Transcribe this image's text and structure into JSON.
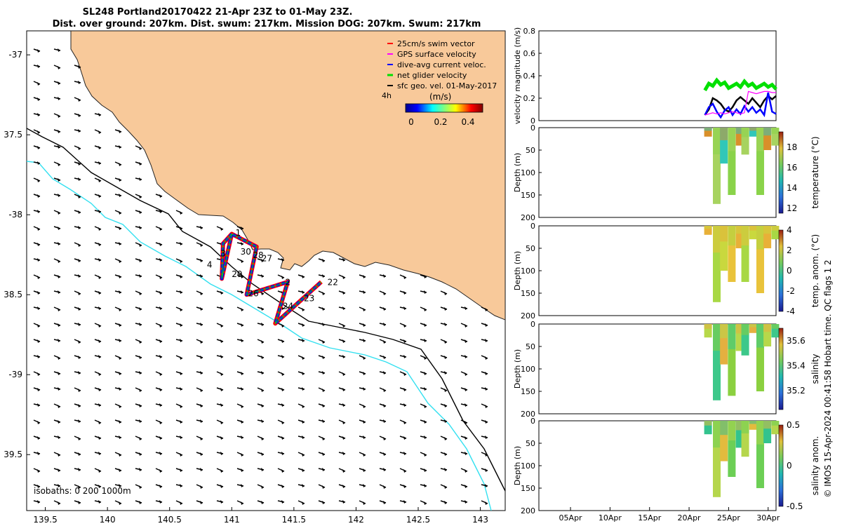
{
  "header": {
    "title_line1": "SL248 Portland20170422 21-Apr 23Z to 01-May 23Z.",
    "title_line2": "Dist. over ground: 207km. Dist. swum: 217km. Mission DOG: 207km. Swum: 217km"
  },
  "credit": "© IMOS 15-Apr-2024 00:41:58 Hobart time. QC flags 1  2",
  "colors": {
    "land": "#f8c99a",
    "coast": "#222222",
    "isobath_shallow": "#000000",
    "isobath_deep": "#33e0f0",
    "swim": "#ff0000",
    "gps": "#ff00ff",
    "dive": "#0000ff",
    "net": "#00e000",
    "geo": "#000000"
  },
  "chart_data": [
    {
      "type": "map",
      "name": "glider-track-map",
      "xlim": [
        139.35,
        143.2
      ],
      "ylim": [
        -39.85,
        -36.85
      ],
      "x_ticks": [
        139.5,
        140,
        140.5,
        141,
        141.5,
        142,
        142.5,
        143
      ],
      "x_tick_labels": [
        "139.5",
        "140",
        "140.5",
        "141",
        "141.5",
        "142",
        "142.5",
        "143"
      ],
      "y_ticks": [
        -37,
        -37.5,
        -38,
        -38.5,
        -39,
        -39.5
      ],
      "y_tick_labels": [
        "-37",
        "37.5",
        "-38",
        "38.5",
        "-39",
        "39.5"
      ],
      "legend": {
        "placement": "top-right",
        "entries": [
          "25cm/s swim vector",
          "GPS surface velocity",
          "dive-avg current veloc.",
          "net glider velocity",
          "sfc geo. vel. 01-May-2017"
        ],
        "extra_label": "4h"
      },
      "colorbar": {
        "label": "(m/s)",
        "ticks": [
          "0",
          "0.2",
          "0.4"
        ],
        "range": [
          0,
          0.5
        ]
      },
      "isobath_label": "isobaths: 0   200  1000m",
      "track": [
        [
          141.0,
          -38.12
        ],
        [
          140.93,
          -38.18
        ],
        [
          140.92,
          -38.4
        ],
        [
          141.0,
          -38.12
        ],
        [
          141.2,
          -38.2
        ],
        [
          141.12,
          -38.5
        ],
        [
          141.45,
          -38.42
        ],
        [
          141.35,
          -38.68
        ],
        [
          141.72,
          -38.42
        ]
      ],
      "track_labels": [
        {
          "text": "1",
          "lon": 141.03,
          "lat": -38.13
        },
        {
          "text": "3",
          "lon": 140.91,
          "lat": -38.26
        },
        {
          "text": "4",
          "lon": 140.8,
          "lat": -38.33
        },
        {
          "text": "30",
          "lon": 141.07,
          "lat": -38.25
        },
        {
          "text": "28",
          "lon": 141.17,
          "lat": -38.27
        },
        {
          "text": "27",
          "lon": 141.24,
          "lat": -38.29
        },
        {
          "text": "29",
          "lon": 141.0,
          "lat": -38.39
        },
        {
          "text": "26",
          "lon": 141.13,
          "lat": -38.51
        },
        {
          "text": "2",
          "lon": 141.43,
          "lat": -38.44
        },
        {
          "text": "24",
          "lon": 141.41,
          "lat": -38.59
        },
        {
          "text": "23",
          "lon": 141.58,
          "lat": -38.54
        },
        {
          "text": "22",
          "lon": 141.77,
          "lat": -38.44
        }
      ]
    },
    {
      "type": "line",
      "name": "velocity-magnitude",
      "ylabel": "velocity magnitude (m/s)",
      "ylim": [
        0,
        0.8
      ],
      "y_ticks": [
        0,
        0.2,
        0.4,
        0.6,
        0.8
      ],
      "y_tick_labels": [
        "0",
        "0.2",
        "0.4",
        "0.6",
        "0.8"
      ],
      "x_range_days": [
        1,
        31
      ],
      "x": [
        22.0,
        22.5,
        23.0,
        23.5,
        24.0,
        24.5,
        25.0,
        25.5,
        26.0,
        26.5,
        27.0,
        27.5,
        28.0,
        28.5,
        29.0,
        29.5,
        30.0,
        30.5,
        31.0
      ],
      "series": [
        {
          "name": "net glider velocity",
          "values": [
            0.27,
            0.33,
            0.31,
            0.36,
            0.32,
            0.34,
            0.29,
            0.31,
            0.33,
            0.3,
            0.35,
            0.31,
            0.33,
            0.29,
            0.31,
            0.33,
            0.3,
            0.32,
            0.28
          ]
        },
        {
          "name": "sfc geo. vel.",
          "values": [
            0.05,
            0.1,
            0.2,
            0.18,
            0.15,
            0.1,
            0.08,
            0.12,
            0.18,
            0.21,
            0.18,
            0.15,
            0.2,
            0.16,
            0.12,
            0.18,
            0.22,
            0.19,
            0.22
          ]
        },
        {
          "name": "dive-avg current veloc.",
          "values": [
            0.05,
            0.12,
            0.15,
            0.08,
            0.03,
            0.09,
            0.12,
            0.05,
            0.1,
            0.06,
            0.13,
            0.08,
            0.12,
            0.07,
            0.1,
            0.05,
            0.25,
            0.08,
            0.06
          ]
        },
        {
          "name": "GPS surface velocity",
          "values": [
            0.05,
            0.06,
            0.07,
            0.06,
            0.07,
            0.06,
            0.07,
            0.08,
            0.07,
            0.06,
            0.07,
            0.26,
            0.25,
            0.24,
            0.25,
            0.26,
            0.26,
            0.25,
            0.25
          ]
        }
      ]
    },
    {
      "type": "heatmap",
      "name": "temperature-section",
      "ylabel": "Depth (m)",
      "ylim": [
        0,
        200
      ],
      "y_tick_labels": [
        "0",
        "50",
        "100",
        "150",
        "200"
      ],
      "colorbar_label": "temperature (°C)",
      "colorbar_ticks": [
        "12",
        "14",
        "16",
        "18"
      ],
      "colorbar_values": [
        12,
        14,
        16,
        18
      ],
      "colorbar_range": [
        11.5,
        19.5
      ],
      "x_days": [
        22.4,
        23.5,
        24.4,
        25.4,
        26.4,
        27.1,
        28.1,
        29.0,
        29.9,
        30.9
      ],
      "max_depth": [
        20,
        170,
        80,
        150,
        40,
        60,
        20,
        150,
        50,
        40
      ],
      "palette": [
        "#d98f2a",
        "#a7d35f",
        "#31c7b8",
        "#8ad34a"
      ]
    },
    {
      "type": "heatmap",
      "name": "temperature-anomaly-section",
      "ylabel": "Depth (m)",
      "ylim": [
        0,
        200
      ],
      "y_tick_labels": [
        "0",
        "50",
        "100",
        "150",
        "200"
      ],
      "colorbar_label": "temp. anom. (°C)",
      "colorbar_ticks": [
        "4",
        "2",
        "0",
        "-2",
        "-4"
      ],
      "colorbar_values": [
        4,
        2,
        0,
        -2,
        -4
      ],
      "colorbar_range": [
        -4,
        4
      ],
      "x_days": [
        22.4,
        23.5,
        24.4,
        25.4,
        26.4,
        27.1,
        28.1,
        29.0,
        29.9,
        30.9
      ],
      "max_depth": [
        20,
        170,
        100,
        125,
        50,
        125,
        30,
        150,
        50,
        30
      ],
      "palette": [
        "#e8b038",
        "#a8d844",
        "#c9d83e",
        "#e9c33b"
      ]
    },
    {
      "type": "heatmap",
      "name": "salinity-section",
      "ylabel": "Depth (m)",
      "ylim": [
        0,
        200
      ],
      "y_tick_labels": [
        "0",
        "50",
        "100",
        "150",
        "200"
      ],
      "colorbar_label": "salinity",
      "colorbar_ticks": [
        "35.6",
        "35.4",
        "35.2"
      ],
      "colorbar_values": [
        35.6,
        35.4,
        35.2
      ],
      "colorbar_range": [
        35.05,
        35.7
      ],
      "x_days": [
        22.4,
        23.5,
        24.4,
        25.4,
        26.4,
        27.1,
        28.1,
        29.0,
        29.9,
        30.9
      ],
      "max_depth": [
        30,
        170,
        90,
        160,
        60,
        70,
        20,
        150,
        50,
        30
      ],
      "palette": [
        "#b7d84a",
        "#3dc88a",
        "#e4b040",
        "#8bd040"
      ]
    },
    {
      "type": "heatmap",
      "name": "salinity-anomaly-section",
      "ylabel": "Depth (m)",
      "ylim": [
        0,
        200
      ],
      "y_tick_labels": [
        "0",
        "50",
        "100",
        "150",
        "200"
      ],
      "colorbar_label": "salinity anom.",
      "colorbar_ticks": [
        "0.5",
        "0",
        "-0.5"
      ],
      "colorbar_values": [
        0.5,
        0,
        -0.5
      ],
      "colorbar_range": [
        -0.5,
        0.5
      ],
      "x_days": [
        22.4,
        23.5,
        24.4,
        25.4,
        26.4,
        27.1,
        28.1,
        29.0,
        29.9,
        30.9
      ],
      "max_depth": [
        30,
        170,
        90,
        125,
        60,
        80,
        20,
        150,
        50,
        30
      ],
      "palette": [
        "#33c38e",
        "#b5d64c",
        "#e2bb3e",
        "#6ccf55"
      ]
    },
    {
      "type": "axis",
      "name": "time-axis",
      "x_ticks_day": [
        5,
        10,
        15,
        20,
        25,
        30
      ],
      "x_tick_labels": [
        "05Apr",
        "10Apr",
        "15Apr",
        "20Apr",
        "25Apr",
        "30Apr"
      ]
    }
  ]
}
